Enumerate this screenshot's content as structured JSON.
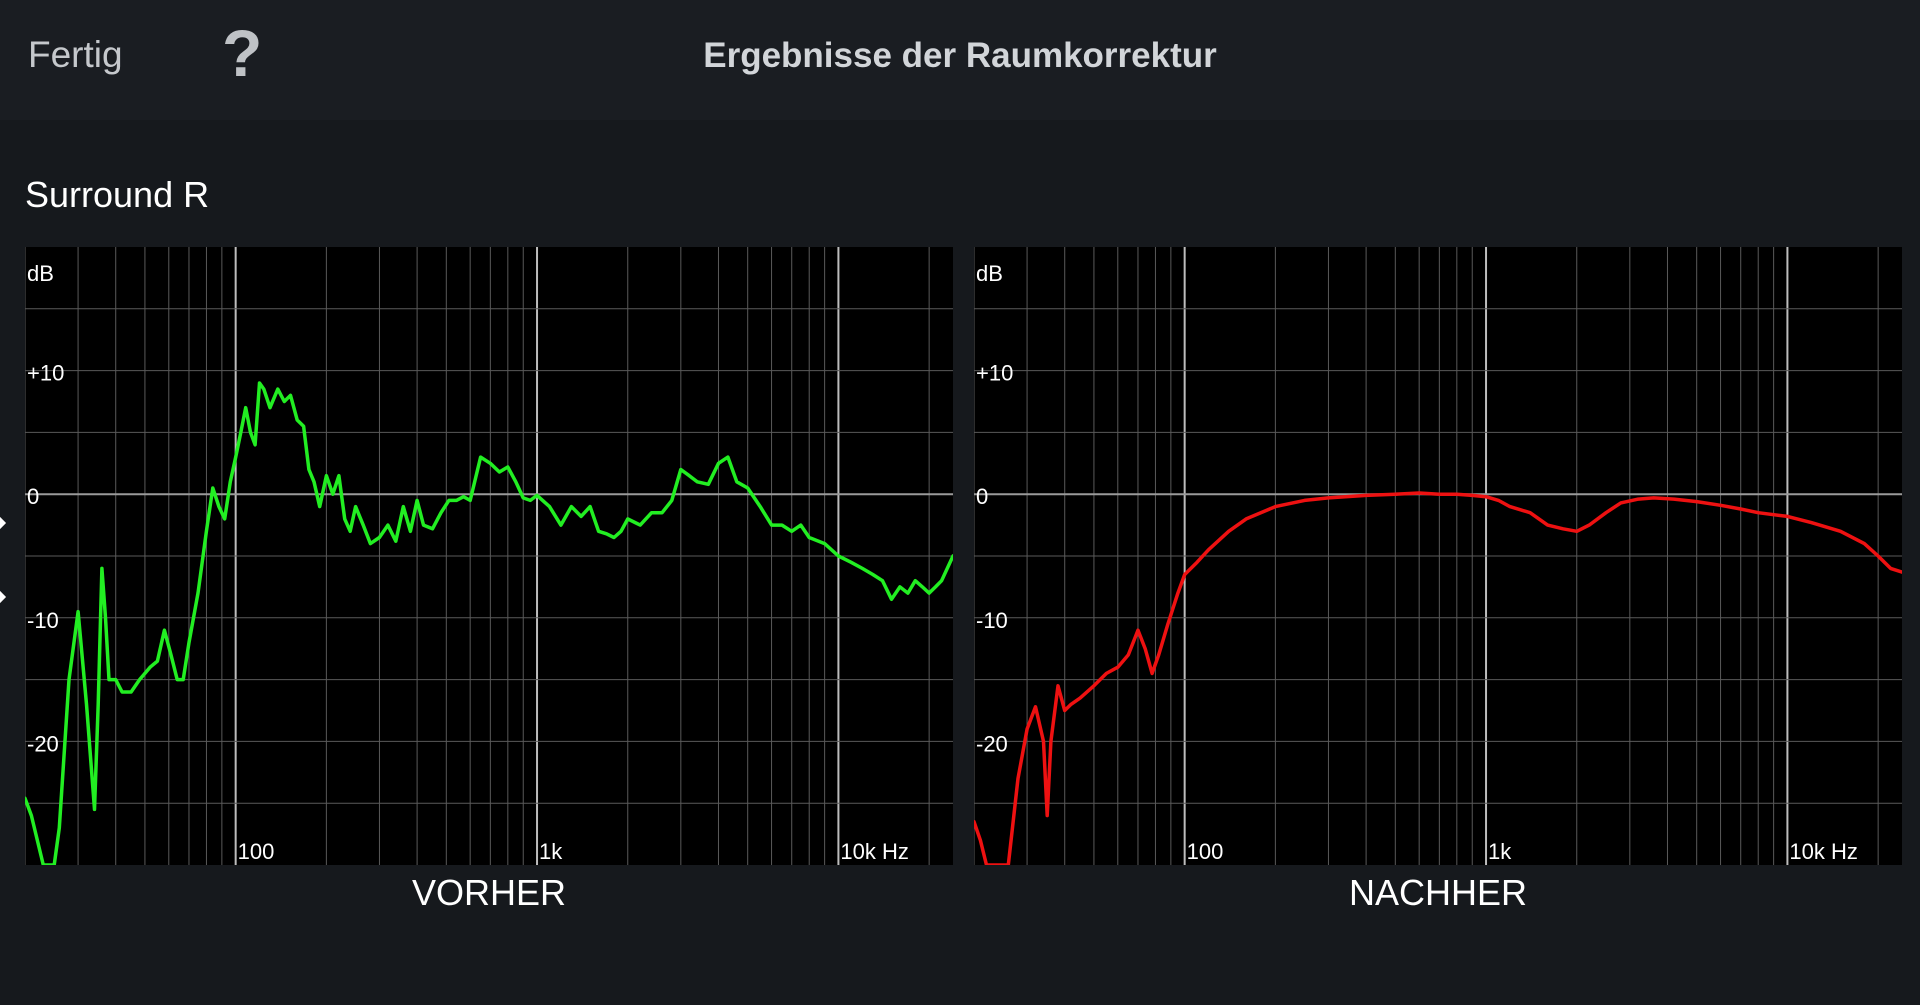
{
  "header": {
    "done_label": "Fertig",
    "help_label": "?",
    "title": "Ergebnisse der Raumkorrektur"
  },
  "channel": {
    "name": "Surround R"
  },
  "colors": {
    "background": "#16191d",
    "plot_background": "#000000",
    "grid": "#5a5a5a",
    "zero_line": "#9a9a9a",
    "before_curve": "#22ee22",
    "after_curve": "#ee1111"
  },
  "chart_data": [
    {
      "type": "line",
      "caption": "VORHER",
      "ylabel": "dB",
      "xscale": "log",
      "xlim": [
        20,
        24000
      ],
      "ylim": [
        -30,
        20
      ],
      "x_ticks": [
        {
          "value": 100,
          "label": "100"
        },
        {
          "value": 1000,
          "label": "1k"
        },
        {
          "value": 10000,
          "label": "10k Hz"
        }
      ],
      "y_ticks": [
        {
          "value": 10,
          "label": "+10"
        },
        {
          "value": 0,
          "label": "0"
        },
        {
          "value": -10,
          "label": "-10"
        },
        {
          "value": -20,
          "label": "-20"
        }
      ],
      "grid": true,
      "series": [
        {
          "color": "#22ee22",
          "points": [
            [
              20,
              -24.6
            ],
            [
              21,
              -26
            ],
            [
              23,
              -30
            ],
            [
              25,
              -30
            ],
            [
              26,
              -27
            ],
            [
              28,
              -15
            ],
            [
              30,
              -9.5
            ],
            [
              32,
              -17
            ],
            [
              34,
              -25.5
            ],
            [
              35,
              -17
            ],
            [
              36,
              -6
            ],
            [
              37,
              -10
            ],
            [
              38,
              -15
            ],
            [
              40,
              -15
            ],
            [
              42,
              -16
            ],
            [
              45,
              -16
            ],
            [
              48,
              -15
            ],
            [
              52,
              -14
            ],
            [
              55,
              -13.5
            ],
            [
              58,
              -11
            ],
            [
              61,
              -13
            ],
            [
              64,
              -15
            ],
            [
              67,
              -15
            ],
            [
              70,
              -12
            ],
            [
              75,
              -8
            ],
            [
              80,
              -3
            ],
            [
              84,
              0.5
            ],
            [
              88,
              -1
            ],
            [
              92,
              -2
            ],
            [
              96,
              1
            ],
            [
              100,
              3
            ],
            [
              104,
              5
            ],
            [
              108,
              7
            ],
            [
              112,
              5
            ],
            [
              116,
              4
            ],
            [
              120,
              9
            ],
            [
              124,
              8.5
            ],
            [
              130,
              7
            ],
            [
              138,
              8.5
            ],
            [
              145,
              7.5
            ],
            [
              152,
              8
            ],
            [
              160,
              6
            ],
            [
              168,
              5.5
            ],
            [
              175,
              2
            ],
            [
              182,
              1
            ],
            [
              190,
              -1
            ],
            [
              200,
              1.5
            ],
            [
              210,
              0
            ],
            [
              220,
              1.5
            ],
            [
              230,
              -2
            ],
            [
              240,
              -3
            ],
            [
              250,
              -1
            ],
            [
              265,
              -2.5
            ],
            [
              280,
              -4
            ],
            [
              300,
              -3.5
            ],
            [
              320,
              -2.5
            ],
            [
              340,
              -3.8
            ],
            [
              360,
              -1
            ],
            [
              380,
              -3
            ],
            [
              400,
              -0.5
            ],
            [
              420,
              -2.5
            ],
            [
              450,
              -2.8
            ],
            [
              480,
              -1.5
            ],
            [
              510,
              -0.5
            ],
            [
              540,
              -0.5
            ],
            [
              570,
              -0.2
            ],
            [
              600,
              -0.5
            ],
            [
              650,
              3
            ],
            [
              700,
              2.5
            ],
            [
              750,
              1.8
            ],
            [
              800,
              2.2
            ],
            [
              850,
              1
            ],
            [
              900,
              -0.3
            ],
            [
              950,
              -0.5
            ],
            [
              1000,
              -0.1
            ],
            [
              1100,
              -1
            ],
            [
              1200,
              -2.5
            ],
            [
              1300,
              -1
            ],
            [
              1400,
              -1.8
            ],
            [
              1500,
              -1
            ],
            [
              1600,
              -3
            ],
            [
              1700,
              -3.2
            ],
            [
              1800,
              -3.5
            ],
            [
              1900,
              -3
            ],
            [
              2000,
              -2
            ],
            [
              2200,
              -2.5
            ],
            [
              2400,
              -1.5
            ],
            [
              2600,
              -1.5
            ],
            [
              2800,
              -0.5
            ],
            [
              3000,
              2
            ],
            [
              3200,
              1.5
            ],
            [
              3400,
              1
            ],
            [
              3700,
              0.8
            ],
            [
              4000,
              2.5
            ],
            [
              4300,
              3
            ],
            [
              4600,
              1
            ],
            [
              5000,
              0.5
            ],
            [
              5500,
              -1
            ],
            [
              6000,
              -2.5
            ],
            [
              6500,
              -2.5
            ],
            [
              7000,
              -3
            ],
            [
              7500,
              -2.5
            ],
            [
              8000,
              -3.5
            ],
            [
              9000,
              -4
            ],
            [
              10000,
              -5
            ],
            [
              11000,
              -5.5
            ],
            [
              12000,
              -6
            ],
            [
              13000,
              -6.5
            ],
            [
              14000,
              -7
            ],
            [
              15000,
              -8.5
            ],
            [
              16000,
              -7.5
            ],
            [
              17000,
              -8
            ],
            [
              18000,
              -7
            ],
            [
              19000,
              -7.5
            ],
            [
              20000,
              -8
            ],
            [
              21000,
              -7.5
            ],
            [
              22000,
              -7
            ],
            [
              24000,
              -5
            ]
          ]
        }
      ]
    },
    {
      "type": "line",
      "caption": "NACHHER",
      "ylabel": "dB",
      "xscale": "log",
      "xlim": [
        20,
        24000
      ],
      "ylim": [
        -30,
        20
      ],
      "x_ticks": [
        {
          "value": 100,
          "label": "100"
        },
        {
          "value": 1000,
          "label": "1k"
        },
        {
          "value": 10000,
          "label": "10k Hz"
        }
      ],
      "y_ticks": [
        {
          "value": 10,
          "label": "+10"
        },
        {
          "value": 0,
          "label": "0"
        },
        {
          "value": -10,
          "label": "-10"
        },
        {
          "value": -20,
          "label": "-20"
        }
      ],
      "grid": true,
      "series": [
        {
          "color": "#ee1111",
          "points": [
            [
              20,
              -26.5
            ],
            [
              21,
              -28
            ],
            [
              22,
              -30
            ],
            [
              26,
              -30
            ],
            [
              28,
              -23
            ],
            [
              30,
              -19
            ],
            [
              32,
              -17.2
            ],
            [
              34,
              -20
            ],
            [
              35,
              -26
            ],
            [
              36,
              -20
            ],
            [
              38,
              -15.5
            ],
            [
              40,
              -17.5
            ],
            [
              42,
              -17
            ],
            [
              45,
              -16.5
            ],
            [
              50,
              -15.5
            ],
            [
              55,
              -14.5
            ],
            [
              60,
              -14
            ],
            [
              65,
              -13
            ],
            [
              70,
              -11
            ],
            [
              74,
              -12.5
            ],
            [
              78,
              -14.5
            ],
            [
              82,
              -13
            ],
            [
              88,
              -10.5
            ],
            [
              95,
              -8
            ],
            [
              100,
              -6.5
            ],
            [
              110,
              -5.5
            ],
            [
              120,
              -4.5
            ],
            [
              140,
              -3
            ],
            [
              160,
              -2
            ],
            [
              200,
              -1
            ],
            [
              250,
              -0.5
            ],
            [
              300,
              -0.3
            ],
            [
              400,
              -0.1
            ],
            [
              500,
              0
            ],
            [
              600,
              0.1
            ],
            [
              700,
              0
            ],
            [
              800,
              0
            ],
            [
              900,
              -0.1
            ],
            [
              1000,
              -0.2
            ],
            [
              1100,
              -0.5
            ],
            [
              1200,
              -1
            ],
            [
              1400,
              -1.5
            ],
            [
              1600,
              -2.5
            ],
            [
              1800,
              -2.8
            ],
            [
              2000,
              -3
            ],
            [
              2200,
              -2.5
            ],
            [
              2500,
              -1.5
            ],
            [
              2800,
              -0.7
            ],
            [
              3200,
              -0.4
            ],
            [
              3600,
              -0.3
            ],
            [
              4200,
              -0.4
            ],
            [
              5000,
              -0.6
            ],
            [
              6000,
              -0.9
            ],
            [
              7000,
              -1.2
            ],
            [
              8000,
              -1.5
            ],
            [
              10000,
              -1.8
            ],
            [
              12000,
              -2.3
            ],
            [
              15000,
              -3
            ],
            [
              18000,
              -4
            ],
            [
              20000,
              -5
            ],
            [
              22000,
              -6
            ],
            [
              24000,
              -6.3
            ]
          ]
        }
      ]
    }
  ]
}
